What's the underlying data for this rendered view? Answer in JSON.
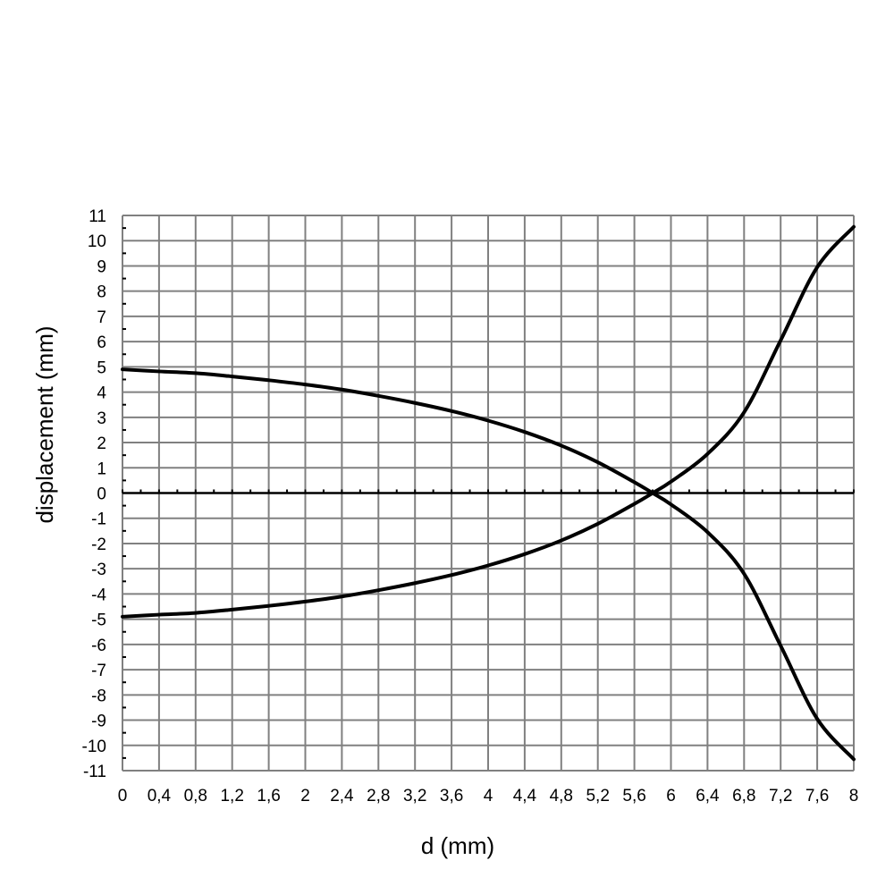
{
  "chart_data": {
    "type": "line",
    "title": "",
    "xlabel": "d (mm)",
    "ylabel": "displacement (mm)",
    "xlim": [
      0,
      8
    ],
    "ylim": [
      -11,
      11
    ],
    "grid": true,
    "x_tick_labels": [
      "0",
      "0,4",
      "0,8",
      "1,2",
      "1,6",
      "2",
      "2,4",
      "2,8",
      "3,2",
      "3,6",
      "4",
      "4,4",
      "4,8",
      "5,2",
      "5,6",
      "6",
      "6,4",
      "6,8",
      "7,2",
      "7,6",
      "8"
    ],
    "y_tick_labels": [
      "11",
      "10",
      "9",
      "8",
      "7",
      "6",
      "5",
      "4",
      "3",
      "2",
      "1",
      "0",
      "-1",
      "-2",
      "-3",
      "-4",
      "-5",
      "-6",
      "-7",
      "-8",
      "-9",
      "-10",
      "-11"
    ],
    "x_ticks": [
      0,
      0.4,
      0.8,
      1.2,
      1.6,
      2,
      2.4,
      2.8,
      3.2,
      3.6,
      4,
      4.4,
      4.8,
      5.2,
      5.6,
      6,
      6.4,
      6.8,
      7.2,
      7.6,
      8
    ],
    "y_ticks": [
      11,
      10,
      9,
      8,
      7,
      6,
      5,
      4,
      3,
      2,
      1,
      0,
      -1,
      -2,
      -3,
      -4,
      -5,
      -6,
      -7,
      -8,
      -9,
      -10,
      -11
    ],
    "series": [
      {
        "color": "#000000",
        "x": [
          0,
          0.4,
          0.8,
          1.2,
          1.6,
          2.0,
          2.4,
          2.8,
          3.2,
          3.6,
          4.0,
          4.4,
          4.8,
          5.2,
          5.6,
          5.8,
          6.0,
          6.4,
          6.8,
          7.2,
          7.6,
          8.0
        ],
        "y": [
          4.9,
          4.82,
          4.75,
          4.62,
          4.47,
          4.3,
          4.1,
          3.85,
          3.57,
          3.25,
          2.87,
          2.42,
          1.88,
          1.22,
          0.43,
          0.0,
          -0.45,
          -1.55,
          -3.2,
          -6.05,
          -8.95,
          -10.55
        ]
      },
      {
        "color": "#000000",
        "x": [
          0,
          0.4,
          0.8,
          1.2,
          1.6,
          2.0,
          2.4,
          2.8,
          3.2,
          3.6,
          4.0,
          4.4,
          4.8,
          5.2,
          5.6,
          5.8,
          6.0,
          6.4,
          6.8,
          7.2,
          7.6,
          8.0
        ],
        "y": [
          -4.9,
          -4.82,
          -4.75,
          -4.62,
          -4.47,
          -4.3,
          -4.1,
          -3.85,
          -3.57,
          -3.25,
          -2.87,
          -2.42,
          -1.88,
          -1.22,
          -0.43,
          0.0,
          0.45,
          1.55,
          3.2,
          6.05,
          8.95,
          10.55
        ]
      }
    ]
  }
}
